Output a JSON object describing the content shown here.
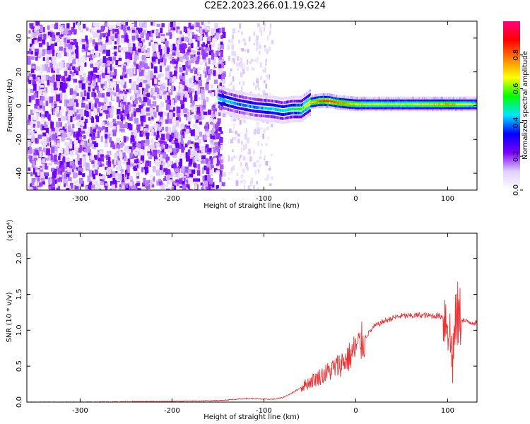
{
  "title": "C2E2.2023.266.01.19.G24",
  "chart_data": [
    {
      "type": "heatmap",
      "xlabel": "Height of straight line (km)",
      "ylabel": "Frequency (Hz)",
      "xlim": [
        -358,
        132
      ],
      "ylim": [
        -50,
        50
      ],
      "x_ticks": [
        -300,
        -200,
        -100,
        0,
        100
      ],
      "y_ticks": [
        -40,
        -20,
        0,
        20,
        40
      ],
      "colorbar": {
        "label": "Normalized spectral amplitude",
        "range": [
          0.0,
          1.0
        ],
        "ticks": [
          0.0,
          0.2,
          0.4,
          0.6,
          0.8
        ],
        "colormap": [
          "#ffffff",
          "#e0cfff",
          "#7a00ff",
          "#0000ff",
          "#00e5ff",
          "#00ff00",
          "#ffff00",
          "#ff8000",
          "#ff0000",
          "#ff0080"
        ]
      },
      "signal_track": {
        "x": [
          -150,
          -130,
          -110,
          -90,
          -80,
          -70,
          -60,
          -50,
          -40,
          -30,
          -20,
          0,
          20,
          40,
          60,
          80,
          100,
          120,
          132
        ],
        "y": [
          4,
          1,
          -1,
          -2,
          -3,
          -2,
          -2,
          2,
          3,
          3,
          2,
          1,
          1,
          1,
          1,
          1,
          1,
          1,
          1
        ],
        "peak_amplitude": [
          0.45,
          0.4,
          0.4,
          0.45,
          0.45,
          0.5,
          0.55,
          0.7,
          0.8,
          0.85,
          0.8,
          0.7,
          0.65,
          0.65,
          0.65,
          0.7,
          0.75,
          0.65,
          0.6
        ]
      },
      "noise_region": {
        "x_from": -358,
        "x_to": -145
      }
    },
    {
      "type": "line",
      "xlabel": "Height of straight line (km)",
      "ylabel": "SNR (10 * v/v)",
      "y_multiplier": "(x10⁴)",
      "xlim": [
        -358,
        132
      ],
      "ylim": [
        0.0,
        2.35
      ],
      "x_ticks": [
        -300,
        -200,
        -100,
        0,
        100
      ],
      "y_ticks": [
        0.0,
        0.5,
        1.0,
        1.5,
        2.0
      ],
      "series": [
        {
          "color": "#ee3333",
          "x": [
            -358,
            -300,
            -200,
            -150,
            -130,
            -120,
            -110,
            -100,
            -90,
            -80,
            -70,
            -60,
            -50,
            -40,
            -30,
            -20,
            -10,
            -5,
            0,
            5,
            10,
            20,
            30,
            40,
            50,
            60,
            70,
            80,
            90,
            100,
            105,
            110,
            115,
            120,
            132
          ],
          "y": [
            0.0,
            0.0,
            0.01,
            0.02,
            0.04,
            0.05,
            0.05,
            0.04,
            0.04,
            0.06,
            0.12,
            0.2,
            0.28,
            0.35,
            0.42,
            0.5,
            0.6,
            0.65,
            0.75,
            0.8,
            0.9,
            1.05,
            1.12,
            1.17,
            1.2,
            1.2,
            1.21,
            1.2,
            1.2,
            1.18,
            0.6,
            1.2,
            1.15,
            1.12,
            1.1
          ]
        }
      ]
    }
  ]
}
